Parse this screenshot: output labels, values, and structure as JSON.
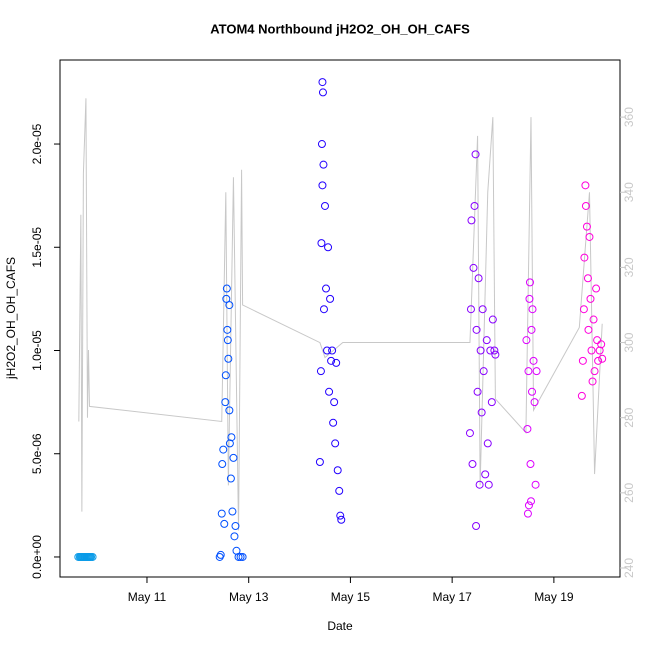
{
  "chart_data": {
    "type": "scatter",
    "title": "ATOM4 Northbound jH2O2_OH_OH_CAFS",
    "xlabel": "Date",
    "ylabel": "jH2O2_OH_OH_CAFS",
    "xlim": [
      9.29,
      20.3
    ],
    "ylim": [
      -9.7e-07,
      2.407e-05
    ],
    "y2lim": [
      237.6,
      375.2
    ],
    "xticks": [
      {
        "value": 11,
        "label": "May 11"
      },
      {
        "value": 13,
        "label": "May 13"
      },
      {
        "value": 15,
        "label": "May 15"
      },
      {
        "value": 17,
        "label": "May 17"
      },
      {
        "value": 19,
        "label": "May 19"
      }
    ],
    "yticks": [
      {
        "value": 0,
        "label": "0.0e+00"
      },
      {
        "value": 5e-06,
        "label": "5.0e-06"
      },
      {
        "value": 1e-05,
        "label": "1.0e-05"
      },
      {
        "value": 1.5e-05,
        "label": "1.5e-05"
      },
      {
        "value": 2e-05,
        "label": "2.0e-05"
      }
    ],
    "y2ticks": [
      240,
      260,
      280,
      300,
      320,
      340,
      360
    ],
    "series": [
      {
        "color": "#0a9be8",
        "x": [
          9.65,
          9.68,
          9.7,
          9.72,
          9.74,
          9.76,
          9.78,
          9.8,
          9.82,
          9.84,
          9.86,
          9.88,
          9.9,
          9.93
        ],
        "values": [
          0,
          0,
          0,
          0,
          0,
          0,
          0,
          0,
          0,
          0,
          0,
          0,
          0,
          0
        ]
      },
      {
        "color": "#0050ff",
        "x": [
          12.43,
          12.45,
          12.47,
          12.48,
          12.5,
          12.52,
          12.54,
          12.55,
          12.56,
          12.57,
          12.58,
          12.6,
          12.62,
          12.63,
          12.65,
          12.66,
          12.68,
          12.7,
          12.72,
          12.74,
          12.76,
          12.8,
          12.84,
          12.88,
          12.62,
          12.59
        ],
        "values": [
          0,
          1e-07,
          2.1e-06,
          4.5e-06,
          5.2e-06,
          1.6e-06,
          7.5e-06,
          8.8e-06,
          1.25e-05,
          1.3e-05,
          1.1e-05,
          9.6e-06,
          1.22e-05,
          5.5e-06,
          3.8e-06,
          5.8e-06,
          2.2e-06,
          4.8e-06,
          1e-06,
          1.5e-06,
          3e-07,
          0,
          0,
          0,
          7.1e-06,
          1.05e-05
        ]
      },
      {
        "color": "#2200ff",
        "x": [
          14.4,
          14.42,
          14.43,
          14.45,
          14.46,
          14.47,
          14.48,
          14.5,
          14.52,
          14.54,
          14.56,
          14.58,
          14.6,
          14.62,
          14.64,
          14.66,
          14.68,
          14.7,
          14.72,
          14.75,
          14.78,
          14.8,
          14.82,
          14.44,
          14.45
        ],
        "values": [
          4.6e-06,
          9e-06,
          1.52e-05,
          2.3e-05,
          2.25e-05,
          1.9e-05,
          1.2e-05,
          1.7e-05,
          1.3e-05,
          1e-05,
          1.5e-05,
          8e-06,
          1.25e-05,
          9.5e-06,
          1e-05,
          6.5e-06,
          7.5e-06,
          5.5e-06,
          9.4e-06,
          4.2e-06,
          3.2e-06,
          2e-06,
          1.8e-06,
          2e-05,
          1.8e-05
        ]
      },
      {
        "color": "#8800ff",
        "x": [
          17.35,
          17.37,
          17.38,
          17.4,
          17.42,
          17.44,
          17.46,
          17.47,
          17.48,
          17.5,
          17.52,
          17.54,
          17.56,
          17.58,
          17.6,
          17.62,
          17.65,
          17.68,
          17.7,
          17.72,
          17.75,
          17.78,
          17.8,
          17.83,
          17.85
        ],
        "values": [
          6e-06,
          1.2e-05,
          1.63e-05,
          4.5e-06,
          1.4e-05,
          1.7e-05,
          1.95e-05,
          1.5e-06,
          1.1e-05,
          8e-06,
          1.35e-05,
          3.5e-06,
          1e-05,
          7e-06,
          1.2e-05,
          9e-06,
          4e-06,
          1.05e-05,
          5.5e-06,
          3.5e-06,
          1e-05,
          7.5e-06,
          1.15e-05,
          1e-05,
          9.8e-06
        ]
      },
      {
        "color": "#dd00ff",
        "x": [
          18.46,
          18.48,
          18.49,
          18.5,
          18.52,
          18.53,
          18.54,
          18.55,
          18.56,
          18.57,
          18.58,
          18.6,
          18.62,
          18.64,
          18.66,
          18.51
        ],
        "values": [
          1.05e-05,
          6.2e-06,
          2.1e-06,
          9e-06,
          1.25e-05,
          1.33e-05,
          4.5e-06,
          2.7e-06,
          1.1e-05,
          8e-06,
          1.2e-05,
          9.5e-06,
          7.5e-06,
          3.5e-06,
          9e-06,
          2.5e-06
        ]
      },
      {
        "color": "#ff00dd",
        "x": [
          19.55,
          19.57,
          19.59,
          19.6,
          19.62,
          19.63,
          19.65,
          19.67,
          19.68,
          19.7,
          19.72,
          19.74,
          19.76,
          19.78,
          19.8,
          19.83,
          19.85,
          19.87,
          19.9,
          19.93,
          19.95
        ],
        "values": [
          7.8e-06,
          9.5e-06,
          1.2e-05,
          1.45e-05,
          1.8e-05,
          1.7e-05,
          1.6e-05,
          1.35e-05,
          1.1e-05,
          1.55e-05,
          1.25e-05,
          1e-05,
          8.5e-06,
          1.15e-05,
          9e-06,
          1.3e-05,
          1.05e-05,
          9.5e-06,
          1e-05,
          1.03e-05,
          9.6e-06
        ]
      },
      {
        "type": "line",
        "axis": "y2",
        "color": "#c8c8c8",
        "x": [
          9.66,
          9.7,
          9.72,
          9.75,
          9.8,
          9.83,
          9.85,
          9.87,
          12.47,
          12.55,
          12.6,
          12.7,
          12.8,
          12.86,
          12.88,
          14.4,
          14.5,
          14.85,
          17.35,
          17.5,
          17.55,
          17.7,
          17.8,
          17.85,
          18.45,
          18.55,
          18.6,
          19.5,
          19.7,
          19.8,
          19.95
        ],
        "values": [
          279,
          334,
          255,
          345,
          365,
          280,
          298,
          283,
          279,
          340,
          262,
          344,
          250,
          346,
          310,
          300,
          296,
          300,
          300,
          355,
          262,
          340,
          360,
          285,
          276,
          360,
          282,
          304,
          340,
          265,
          305
        ]
      }
    ]
  }
}
